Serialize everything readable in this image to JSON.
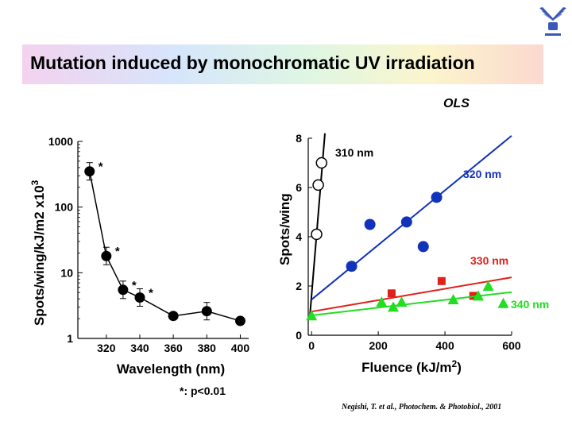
{
  "title": "Mutation induced by monochromatic UV irradiation",
  "ols_label": "OLS",
  "footnote": "*: p<0.01",
  "citation": "Negishi, T. et al., Photochem. & Photobiol., 2001",
  "colors": {
    "blue": "#1133bb",
    "red": "#e0201a",
    "green": "#22dd22",
    "black": "#000000"
  },
  "logo_icon": "university-emblem-icon",
  "chart_data": [
    {
      "type": "line",
      "title": "",
      "xlabel": "Wavelength (nm)",
      "ylabel": "Spots/wing/kJ/m2 x10",
      "ylabel_exp": "3",
      "y_scale": "log",
      "xlim": [
        303,
        405
      ],
      "ylim": [
        1,
        1000
      ],
      "x_ticks": [
        "320",
        "340",
        "360",
        "380",
        "400"
      ],
      "x_tick_values": [
        320,
        340,
        360,
        380,
        400
      ],
      "y_ticks": [
        "1",
        "10",
        "100",
        "1000"
      ],
      "y_tick_values": [
        1,
        10,
        100,
        1000
      ],
      "x": [
        310,
        320,
        330,
        340,
        360,
        380,
        400
      ],
      "y": [
        350,
        18,
        5.5,
        4.2,
        2.2,
        2.6,
        1.85
      ],
      "error_bars": [
        true,
        true,
        true,
        true,
        false,
        true,
        false
      ],
      "significant": [
        true,
        true,
        true,
        true,
        false,
        false,
        false
      ],
      "grid": false
    },
    {
      "type": "scatter",
      "title": "",
      "xlabel": "Fluence (kJ/m",
      "xlabel_exp": "2",
      "xlabel_close": ")",
      "ylabel": "Spots/wing",
      "xlim": [
        -10,
        600
      ],
      "ylim": [
        0,
        8
      ],
      "x_ticks": [
        "0",
        "200",
        "400",
        "600"
      ],
      "x_tick_values": [
        0,
        200,
        400,
        600
      ],
      "y_ticks": [
        "0",
        "2",
        "4",
        "6",
        "8"
      ],
      "y_tick_values": [
        0,
        2,
        4,
        6,
        8
      ],
      "grid": false,
      "series": [
        {
          "name": "310 nm",
          "marker": "open-circle",
          "color": "#000000",
          "x": [
            15,
            20,
            30
          ],
          "y": [
            4.1,
            6.1,
            7.0
          ],
          "fit": [
            [
              -5,
              0.8
            ],
            [
              40,
              8.2
            ]
          ]
        },
        {
          "name": "320 nm",
          "marker": "circle",
          "color": "#1133bb",
          "x": [
            120,
            175,
            285,
            335,
            375
          ],
          "y": [
            2.8,
            4.5,
            4.6,
            3.6,
            5.6
          ],
          "fit": [
            [
              0,
              1.45
            ],
            [
              600,
              8.1
            ]
          ]
        },
        {
          "name": "330 nm",
          "marker": "square",
          "color": "#e0201a",
          "x": [
            240,
            390,
            485
          ],
          "y": [
            1.7,
            2.2,
            1.6
          ],
          "fit": [
            [
              -5,
              0.95
            ],
            [
              600,
              2.35
            ]
          ]
        },
        {
          "name": "340 nm",
          "marker": "triangle",
          "color": "#22dd22",
          "x": [
            0,
            210,
            245,
            270,
            425,
            500,
            530,
            575
          ],
          "y": [
            0.8,
            1.35,
            1.15,
            1.35,
            1.45,
            1.6,
            2.0,
            1.3
          ],
          "fit": [
            [
              -5,
              0.8
            ],
            [
              600,
              1.75
            ]
          ]
        }
      ]
    }
  ]
}
